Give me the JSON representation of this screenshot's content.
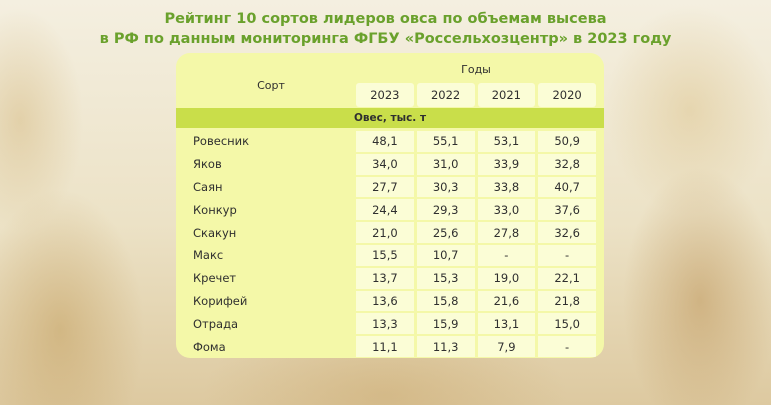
{
  "title_line1": "Рейтинг 10 сортов лидеров овса по объемам высева",
  "title_line2": "в РФ по данным мониторинга ФГБУ «Россельхозцентр» в 2023 году",
  "table": {
    "col_sort": "Сорт",
    "col_years": "Годы",
    "years": [
      "2023",
      "2022",
      "2021",
      "2020"
    ],
    "section": "Овес, тыс. т",
    "rows": [
      {
        "name": "Ровесник",
        "values": [
          "48,1",
          "55,1",
          "53,1",
          "50,9"
        ]
      },
      {
        "name": "Яков",
        "values": [
          "34,0",
          "31,0",
          "33,9",
          "32,8"
        ]
      },
      {
        "name": "Саян",
        "values": [
          "27,7",
          "30,3",
          "33,8",
          "40,7"
        ]
      },
      {
        "name": "Конкур",
        "values": [
          "24,4",
          "29,3",
          "33,0",
          "37,6"
        ]
      },
      {
        "name": "Скакун",
        "values": [
          "21,0",
          "25,6",
          "27,8",
          "32,6"
        ]
      },
      {
        "name": "Макс",
        "values": [
          "15,5",
          "10,7",
          "-",
          "-"
        ]
      },
      {
        "name": "Кречет",
        "values": [
          "13,7",
          "15,3",
          "19,0",
          "22,1"
        ]
      },
      {
        "name": "Корифей",
        "values": [
          "13,6",
          "15,8",
          "21,6",
          "21,8"
        ]
      },
      {
        "name": "Отрада",
        "values": [
          "13,3",
          "15,9",
          "13,1",
          "15,0"
        ]
      },
      {
        "name": "Фома",
        "values": [
          "11,1",
          "11,3",
          "7,9",
          "-"
        ]
      }
    ]
  }
}
